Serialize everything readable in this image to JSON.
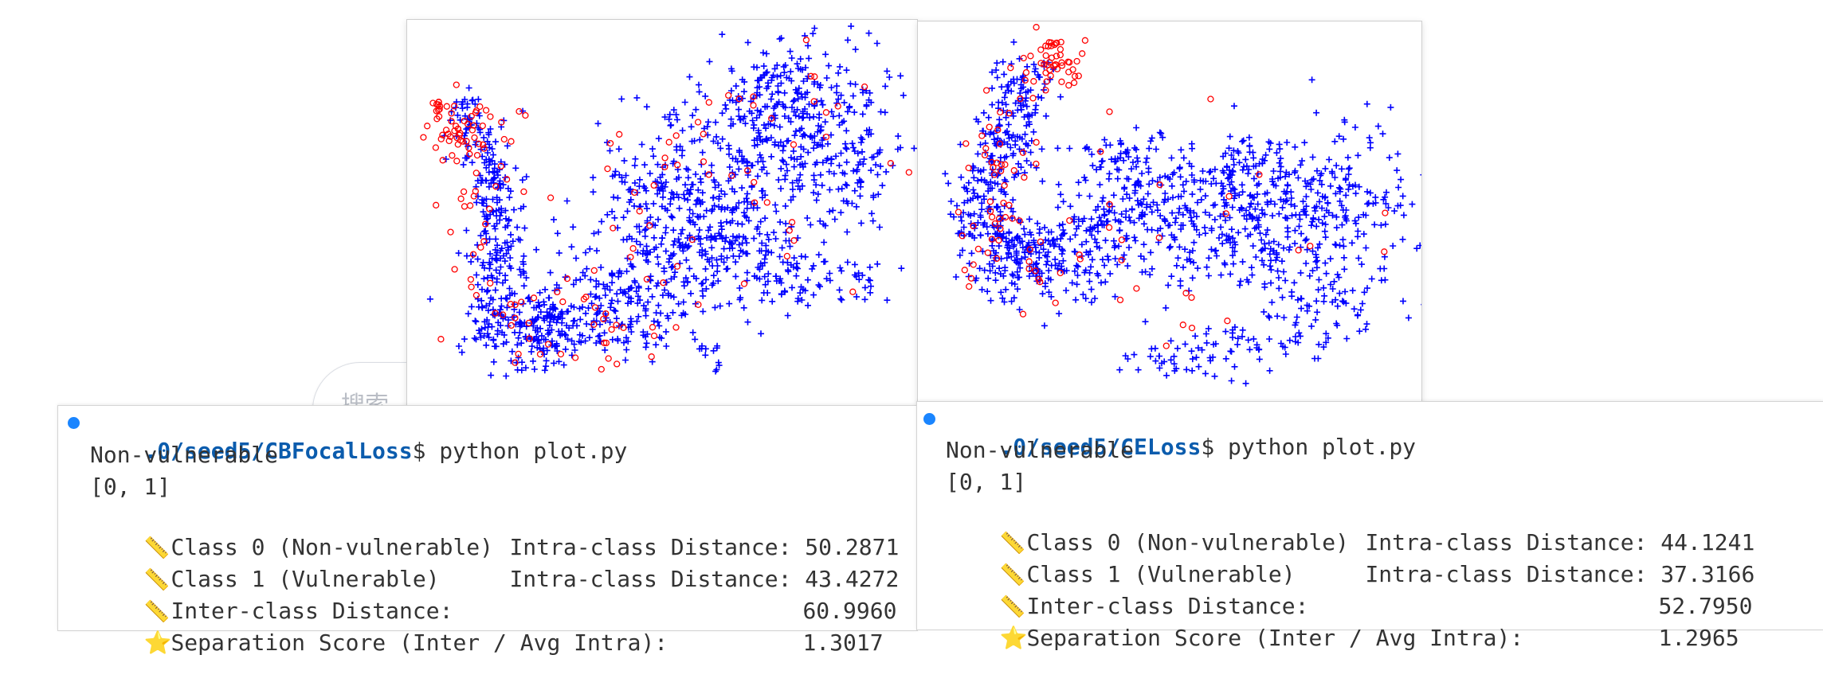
{
  "background": {
    "search_placeholder": "搜索"
  },
  "plots": {
    "colors": {
      "non_vulnerable": "#0000ff",
      "vulnerable": "#ff0000"
    },
    "markers": {
      "non_vulnerable": "plus",
      "vulnerable": "circle"
    }
  },
  "terminals": [
    {
      "path": ".0/seed5/CBFocalLoss",
      "prompt": "$ python plot.py",
      "label_name": "Non-vulnerable",
      "label_list": "[0, 1]",
      "class0_label": "Class 0 (Non-vulnerable)",
      "class0_metric": "Intra-class Distance: 50.2871",
      "class1_label": "Class 1 (Vulnerable)",
      "class1_metric": "Intra-class Distance: 43.4272",
      "inter_label": "Inter-class Distance:",
      "inter_value": "60.9960",
      "sep_label": "Separation Score (Inter / Avg Intra):",
      "sep_value": "1.3017",
      "ruler_icon": "📏",
      "star_icon": "⭐"
    },
    {
      "path": ".0/seed5/CELoss",
      "prompt": "$ python plot.py",
      "label_name": "Non-vulnerable",
      "label_list": "[0, 1]",
      "class0_label": "Class 0 (Non-vulnerable)",
      "class0_metric": "Intra-class Distance: 44.1241",
      "class1_label": "Class 1 (Vulnerable)",
      "class1_metric": "Intra-class Distance: 37.3166",
      "inter_label": "Inter-class Distance:",
      "inter_value": "52.7950",
      "sep_label": "Separation Score (Inter / Avg Intra):",
      "sep_value": "1.2965",
      "ruler_icon": "📏",
      "star_icon": "⭐"
    }
  ]
}
